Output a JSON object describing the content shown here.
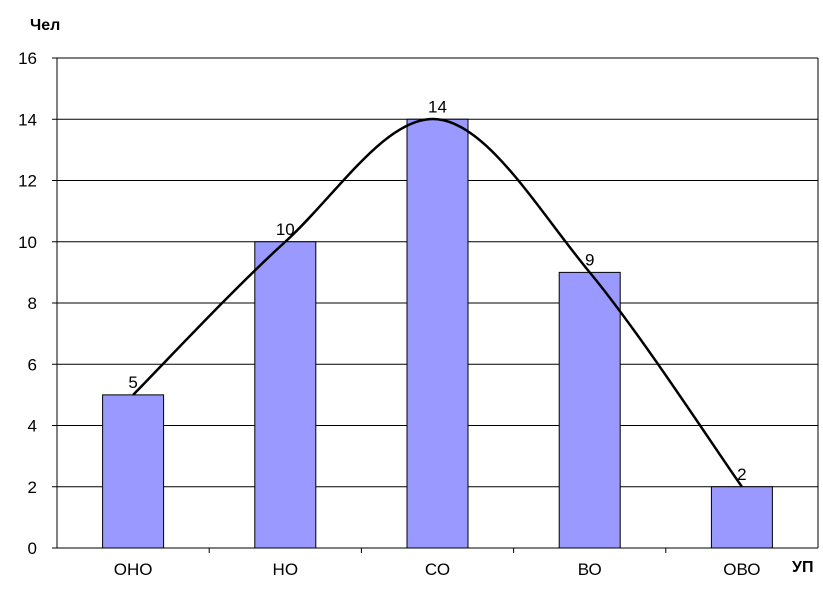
{
  "chart_data": {
    "type": "bar",
    "title": "",
    "ylabel": "Чел",
    "xlabel": "УП",
    "categories": [
      "ОНО",
      "НО",
      "СО",
      "ВО",
      "ОВО"
    ],
    "values": [
      5,
      10,
      14,
      9,
      2
    ],
    "data_labels": [
      "5",
      "10",
      "14",
      "9",
      "2"
    ],
    "ylim": [
      0,
      16
    ],
    "yticks": [
      0,
      2,
      4,
      6,
      8,
      10,
      12,
      14,
      16
    ],
    "grid": true,
    "trend_curve": true,
    "colors": {
      "bar_fill": "#9999FF",
      "bar_stroke": "#000000",
      "grid": "#000000",
      "curve": "#000000"
    }
  }
}
